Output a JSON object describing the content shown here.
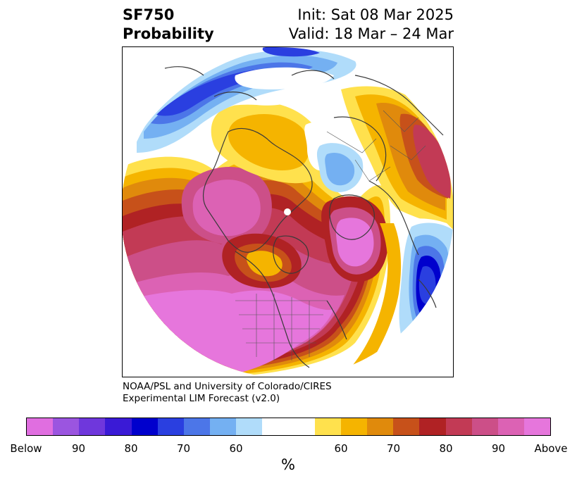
{
  "title": {
    "variable": "SF750",
    "quantity": "Probability",
    "init": "Init: Sat 08 Mar 2025",
    "valid": "Valid: 18 Mar – 24 Mar"
  },
  "credit": {
    "line1": "NOAA/PSL and University of Colorado/CIRES",
    "line2": "Experimental LIM Forecast (v2.0)"
  },
  "colorbar": {
    "colors": [
      "#e06ee0",
      "#9b55e0",
      "#6f37dc",
      "#3a1ad6",
      "#0000cd",
      "#2a3fe0",
      "#4c76e8",
      "#74b0f2",
      "#b0dcfa",
      "#ffffff",
      "#ffffff",
      "#ffe14d",
      "#f5b400",
      "#e08a0c",
      "#c7511a",
      "#b02224",
      "#c23a55",
      "#cc4f88",
      "#dc62b4",
      "#e676dc"
    ],
    "tick_labels": [
      "Below",
      "90",
      "80",
      "70",
      "60",
      "60",
      "70",
      "80",
      "90",
      "Above"
    ],
    "unit": "%"
  },
  "map": {
    "projection": "north-polar-stereographic",
    "colors": {
      "below_95": "#0000cd",
      "below_85": "#2a3fe0",
      "below_75": "#4c76e8",
      "below_65": "#74b0f2",
      "below_55": "#b0dcfa",
      "above_55": "#ffe14d",
      "above_60": "#f5b400",
      "above_65": "#e08a0c",
      "above_70": "#c7511a",
      "above_75": "#b02224",
      "above_80": "#c23a55",
      "above_85": "#cc4f88",
      "above_90": "#dc62b4",
      "above_95": "#e676dc"
    }
  }
}
